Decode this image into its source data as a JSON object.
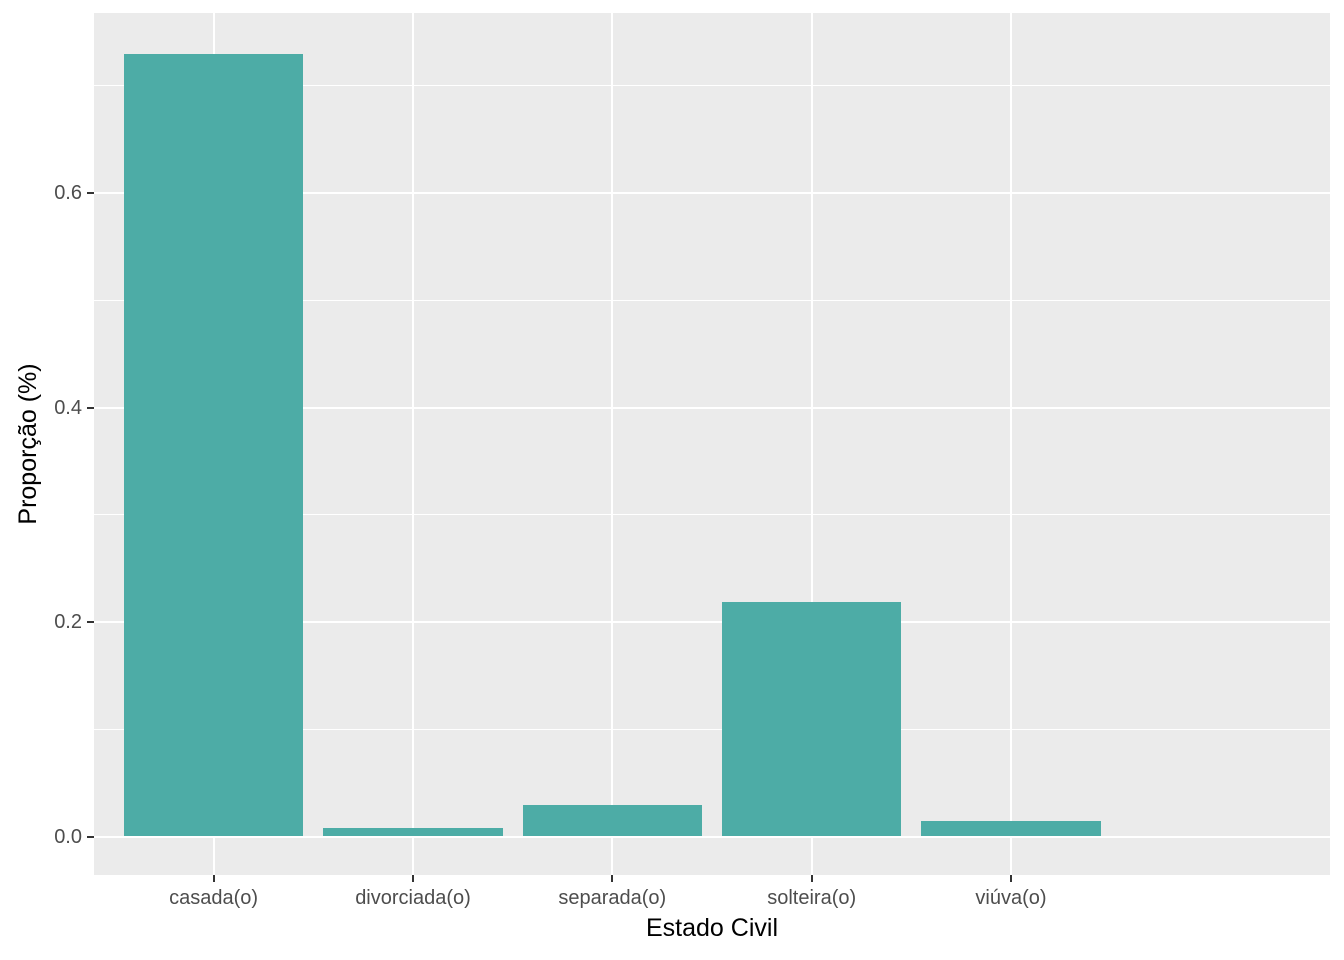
{
  "chart_data": {
    "type": "bar",
    "title": "",
    "xlabel": "Estado Civil",
    "ylabel": "Proporção (%)",
    "categories": [
      "casada(o)",
      "divorciada(o)",
      "separada(o)",
      "solteira(o)",
      "viúva(o)"
    ],
    "values": [
      0.729,
      0.009,
      0.03,
      0.219,
      0.015
    ],
    "ytick_labels": [
      "0.0",
      "0.2",
      "0.4",
      "0.6"
    ],
    "yticks": [
      0.0,
      0.2,
      0.4,
      0.6
    ],
    "minor_yticks": [
      0.1,
      0.3,
      0.5,
      0.7
    ],
    "ylim": [
      -0.035,
      0.767
    ],
    "grid": "major-and-minor, white on gray panel",
    "legend_position": "none",
    "colors": {
      "bar_fill": "#4DACA6",
      "panel_background": "#EBEBEB",
      "gridline": "#FFFFFF",
      "tick_mark": "#333333",
      "tick_label": "#4D4D4D",
      "axis_title": "#000000",
      "figure_background": "#FFFFFF"
    }
  }
}
